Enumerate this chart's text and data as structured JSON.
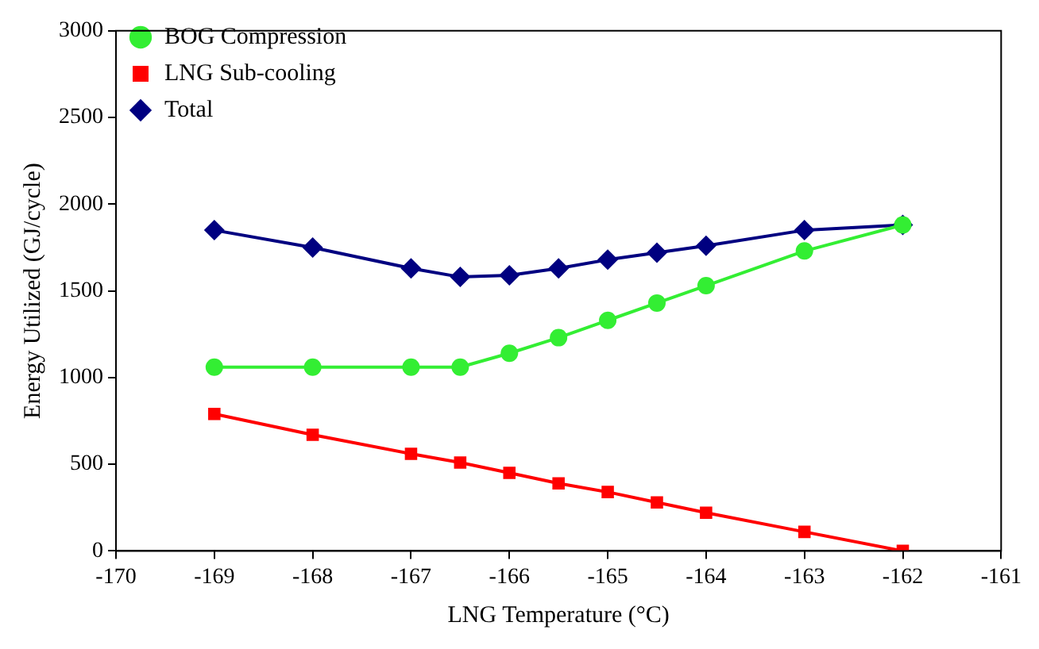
{
  "chart_data": {
    "type": "line",
    "xlabel": "LNG Temperature (°C)",
    "ylabel": "Energy Utilized (GJ/cycle)",
    "x": [
      -169,
      -168,
      -167,
      -166.5,
      -166,
      -165.5,
      -165,
      -164.5,
      -164,
      -163,
      -162
    ],
    "series": [
      {
        "name": "BOG Compression",
        "color": "#33ee33",
        "marker": "circle",
        "values": [
          1060,
          1060,
          1060,
          1060,
          1140,
          1230,
          1330,
          1430,
          1530,
          1730,
          1880
        ]
      },
      {
        "name": "LNG Sub-cooling",
        "color": "#ff0000",
        "marker": "square",
        "values": [
          790,
          670,
          560,
          510,
          450,
          390,
          340,
          280,
          220,
          110,
          0
        ]
      },
      {
        "name": "Total",
        "color": "#000080",
        "marker": "diamond",
        "values": [
          1850,
          1750,
          1630,
          1580,
          1590,
          1630,
          1680,
          1720,
          1760,
          1850,
          1880
        ]
      }
    ],
    "xlim": [
      -170,
      -161
    ],
    "xticks": [
      -170,
      -169,
      -168,
      -167,
      -166,
      -165,
      -164,
      -163,
      -162,
      -161
    ],
    "ylim": [
      0,
      3000
    ],
    "yticks": [
      0,
      500,
      1000,
      1500,
      2000,
      2500,
      3000
    ],
    "grid": false,
    "legend": "top left",
    "line_style": "solid"
  }
}
